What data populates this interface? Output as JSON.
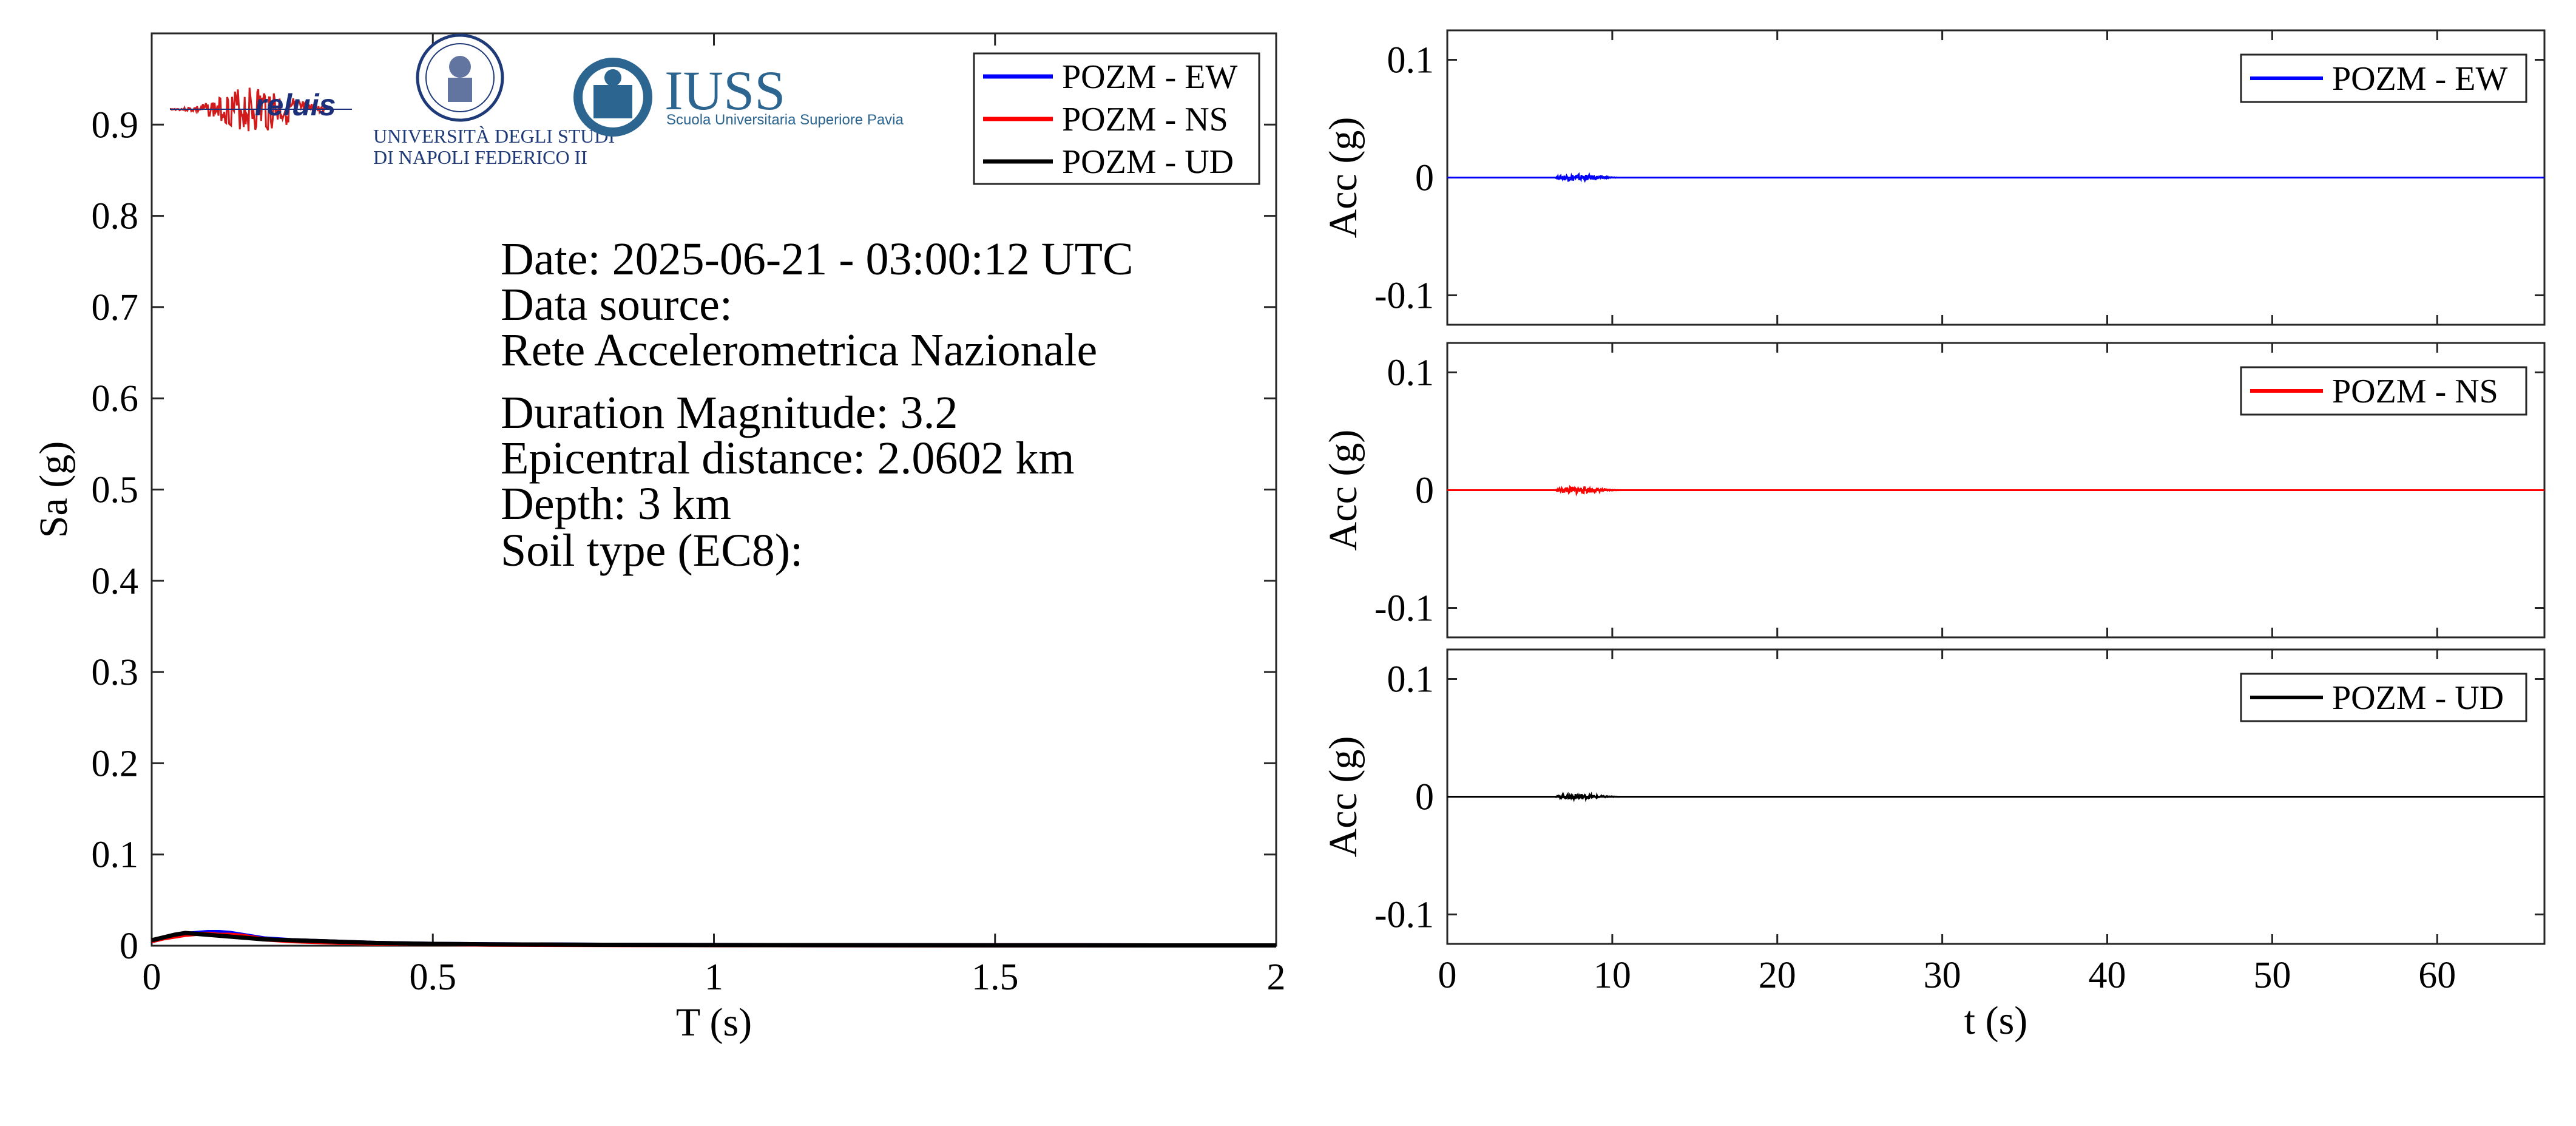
{
  "chart_data": [
    {
      "id": "spectrum",
      "type": "line",
      "xlabel": "T (s)",
      "ylabel": "Sa (g)",
      "xlim": [
        0,
        2
      ],
      "ylim": [
        0,
        1
      ],
      "xticks": [
        0,
        0.5,
        1,
        1.5,
        2
      ],
      "yticks": [
        0,
        0.1,
        0.2,
        0.3,
        0.4,
        0.5,
        0.6,
        0.7,
        0.8,
        0.9
      ],
      "legend_position": "top-right",
      "series": [
        {
          "name": "POZM - EW",
          "color": "#0000ff",
          "x": [
            0,
            0.02,
            0.04,
            0.06,
            0.08,
            0.1,
            0.12,
            0.14,
            0.16,
            0.18,
            0.2,
            0.25,
            0.3,
            0.35,
            0.4,
            0.5,
            0.6,
            0.8,
            1.0,
            1.5,
            2.0
          ],
          "y": [
            0.005,
            0.008,
            0.011,
            0.013,
            0.014,
            0.015,
            0.015,
            0.014,
            0.012,
            0.01,
            0.008,
            0.006,
            0.005,
            0.004,
            0.003,
            0.002,
            0.0015,
            0.001,
            0.0007,
            0.0004,
            0.0003
          ]
        },
        {
          "name": "POZM - NS",
          "color": "#ff0000",
          "x": [
            0,
            0.02,
            0.04,
            0.06,
            0.08,
            0.1,
            0.12,
            0.14,
            0.16,
            0.18,
            0.2,
            0.25,
            0.3,
            0.35,
            0.4,
            0.5,
            0.6,
            0.8,
            1.0,
            1.5,
            2.0
          ],
          "y": [
            0.005,
            0.008,
            0.01,
            0.012,
            0.013,
            0.013,
            0.012,
            0.012,
            0.011,
            0.009,
            0.007,
            0.005,
            0.004,
            0.003,
            0.0025,
            0.0018,
            0.0012,
            0.0008,
            0.0006,
            0.0004,
            0.0003
          ]
        },
        {
          "name": "POZM - UD",
          "color": "#000000",
          "x": [
            0,
            0.02,
            0.04,
            0.06,
            0.08,
            0.1,
            0.12,
            0.14,
            0.16,
            0.18,
            0.2,
            0.25,
            0.3,
            0.35,
            0.4,
            0.5,
            0.6,
            0.8,
            1.0,
            1.5,
            2.0
          ],
          "y": [
            0.006,
            0.009,
            0.012,
            0.014,
            0.013,
            0.012,
            0.011,
            0.01,
            0.009,
            0.008,
            0.007,
            0.006,
            0.005,
            0.004,
            0.003,
            0.002,
            0.0015,
            0.001,
            0.0007,
            0.0004,
            0.0003
          ]
        }
      ]
    },
    {
      "id": "acc-ew",
      "type": "line",
      "ylabel": "Acc (g)",
      "xlim": [
        0,
        66.5
      ],
      "ylim": [
        -0.125,
        0.125
      ],
      "yticks": [
        0.1,
        0,
        -0.1
      ],
      "legend_position": "top-right",
      "series": [
        {
          "name": "POZM - EW",
          "color": "#0000ff",
          "burst_t": [
            6.5,
            10.5
          ],
          "burst_amp": 0.004
        }
      ]
    },
    {
      "id": "acc-ns",
      "type": "line",
      "ylabel": "Acc (g)",
      "xlim": [
        0,
        66.5
      ],
      "ylim": [
        -0.125,
        0.125
      ],
      "yticks": [
        0.1,
        0,
        -0.1
      ],
      "legend_position": "top-right",
      "series": [
        {
          "name": "POZM - NS",
          "color": "#ff0000",
          "burst_t": [
            6.5,
            10.5
          ],
          "burst_amp": 0.004
        }
      ]
    },
    {
      "id": "acc-ud",
      "type": "line",
      "xlabel": "t (s)",
      "ylabel": "Acc (g)",
      "xlim": [
        0,
        66.5
      ],
      "ylim": [
        -0.125,
        0.125
      ],
      "xticks": [
        0,
        10,
        20,
        30,
        40,
        50,
        60
      ],
      "yticks": [
        0.1,
        0,
        -0.1
      ],
      "legend_position": "top-right",
      "series": [
        {
          "name": "POZM - UD",
          "color": "#000000",
          "burst_t": [
            6.5,
            10.5
          ],
          "burst_amp": 0.003
        }
      ]
    }
  ],
  "info": {
    "date_line": "Date: 2025-06-21 - 03:00:12 UTC",
    "source_label": "Data source:",
    "source_name": "Rete Accelerometrica Nazionale",
    "magnitude": "Duration Magnitude: 3.2",
    "distance": "Epicentral distance: 2.0602 km",
    "depth": "Depth: 3 km",
    "soil": "Soil type (EC8):"
  },
  "logos": {
    "reluis": "reluis",
    "unina_line1": "UNIVERSITÀ DEGLI STUDI",
    "unina_line2": "DI NAPOLI FEDERICO II",
    "iuss": "IUSS",
    "iuss_sub": "Scuola Universitaria Superiore Pavia"
  }
}
